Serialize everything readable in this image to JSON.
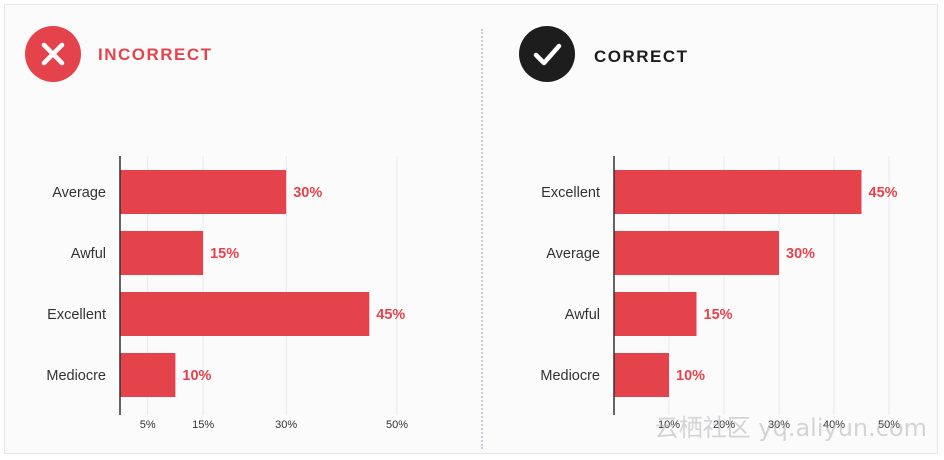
{
  "colors": {
    "bar": "#e5434b",
    "label_red": "#e5434b",
    "incorrect_badge": "#e5434b",
    "correct_badge": "#1d1d1d",
    "text": "#333333",
    "axis": "#333333",
    "grid": "#e9e9ec"
  },
  "incorrect": {
    "heading": "INCORRECT",
    "icon": "close-icon"
  },
  "correct": {
    "heading": "CORRECT",
    "icon": "check-icon"
  },
  "watermark": "云栖社区 yq.aliyun.com",
  "chart_data": [
    {
      "type": "bar",
      "orientation": "horizontal",
      "categories": [
        "Average",
        "Awful",
        "Excellent",
        "Mediocre"
      ],
      "values": [
        30,
        15,
        45,
        10
      ],
      "value_labels": [
        "30%",
        "15%",
        "45%",
        "10%"
      ],
      "xlim": [
        0,
        50
      ],
      "xticks": [
        5,
        15,
        30,
        50
      ],
      "xtick_labels": [
        "5%",
        "15%",
        "30%",
        "50%"
      ],
      "grid": true
    },
    {
      "type": "bar",
      "orientation": "horizontal",
      "categories": [
        "Excellent",
        "Average",
        "Awful",
        "Mediocre"
      ],
      "values": [
        45,
        30,
        15,
        10
      ],
      "value_labels": [
        "45%",
        "30%",
        "15%",
        "10%"
      ],
      "xlim": [
        0,
        50
      ],
      "xticks": [
        10,
        20,
        30,
        40,
        50
      ],
      "xtick_labels": [
        "10%",
        "20%",
        "30%",
        "40%",
        "50%"
      ],
      "grid": true
    }
  ]
}
